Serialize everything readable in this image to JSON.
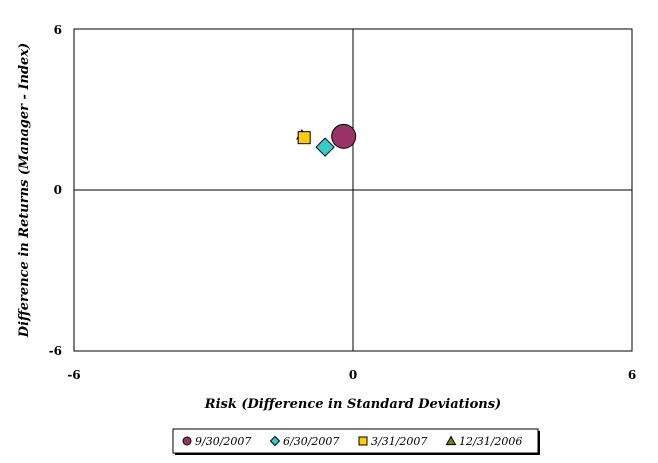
{
  "chart_data": {
    "type": "scatter",
    "xlabel": "Risk (Difference in Standard Deviations)",
    "ylabel": "Difference in Returns (Manager - Index)",
    "xlim": [
      -6,
      6
    ],
    "ylim": [
      -6,
      6
    ],
    "x_ticks": [
      "-6",
      "0",
      "6"
    ],
    "y_ticks": [
      "6",
      "0",
      "-6"
    ],
    "grid": false,
    "quadrant_lines": true,
    "legend_position": "bottom",
    "series": [
      {
        "name": "9/30/2007",
        "marker": "circle",
        "color": "#993366",
        "points": [
          {
            "x": -0.2,
            "y": 2.0
          }
        ]
      },
      {
        "name": "6/30/2007",
        "marker": "diamond",
        "color": "#33CCCC",
        "points": [
          {
            "x": -0.6,
            "y": 1.6
          }
        ]
      },
      {
        "name": "3/31/2007",
        "marker": "square",
        "color": "#FFCC00",
        "points": [
          {
            "x": -1.05,
            "y": 1.95
          }
        ]
      },
      {
        "name": "12/31/2006",
        "marker": "triangle",
        "color": "#808000",
        "points": [
          {
            "x": -1.1,
            "y": 2.05
          }
        ]
      }
    ]
  }
}
